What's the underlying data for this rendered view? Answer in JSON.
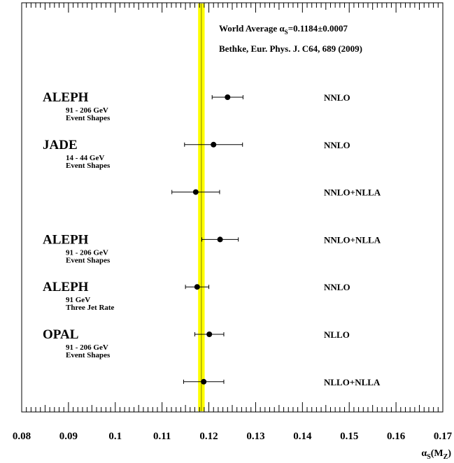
{
  "chart_data": {
    "type": "scatter",
    "xlim": [
      0.08,
      0.17
    ],
    "x_ticks": [
      "0.08",
      "0.09",
      "0.1",
      "0.11",
      "0.12",
      "0.13",
      "0.14",
      "0.15",
      "0.16",
      "0.17"
    ],
    "xlabel": {
      "main": "α",
      "sub1": "S",
      "mid": "(M",
      "sub2": "Z",
      "end": ")"
    },
    "header": {
      "line1_pre": "World Average α",
      "line1_sub": "S",
      "line1_post": "=0.1184±0.0007",
      "line2": "Bethke, Eur. Phys. J. C64, 689 (2009)"
    },
    "world_average": {
      "value": 0.1184,
      "band_low": 0.1177,
      "band_high": 0.1191,
      "band_color": "#ffff00",
      "line_color": "#808000"
    },
    "measurements": [
      {
        "experiment": "ALEPH",
        "energy": "91 - 206 GeV",
        "observable": "Event Shapes",
        "method": "NNLO",
        "value": 0.124,
        "err_low": 0.0033,
        "err_high": 0.0033
      },
      {
        "experiment": "JADE",
        "energy": "14 - 44 GeV",
        "observable": "Event Shapes",
        "method": "NNLO",
        "value": 0.121,
        "err_low": 0.0062,
        "err_high": 0.0062
      },
      {
        "experiment": "",
        "energy": "",
        "observable": "",
        "method": "NNLO+NLLA",
        "value": 0.1172,
        "err_low": 0.0051,
        "err_high": 0.0051
      },
      {
        "experiment": "ALEPH",
        "energy": "91 - 206 GeV",
        "observable": "Event Shapes",
        "method": "NNLO+NLLA",
        "value": 0.1224,
        "err_low": 0.0039,
        "err_high": 0.0039
      },
      {
        "experiment": "ALEPH",
        "energy": "91 GeV",
        "observable": "Three Jet Rate",
        "method": "NNLO",
        "value": 0.1175,
        "err_low": 0.0025,
        "err_high": 0.0025
      },
      {
        "experiment": "OPAL",
        "energy": "91 - 206 GeV",
        "observable": "Event Shapes",
        "method": "NLLO",
        "value": 0.1201,
        "err_low": 0.0031,
        "err_high": 0.0031
      },
      {
        "experiment": "",
        "energy": "",
        "observable": "",
        "method": "NLLO+NLLA",
        "value": 0.1189,
        "err_low": 0.0043,
        "err_high": 0.0043
      }
    ]
  }
}
